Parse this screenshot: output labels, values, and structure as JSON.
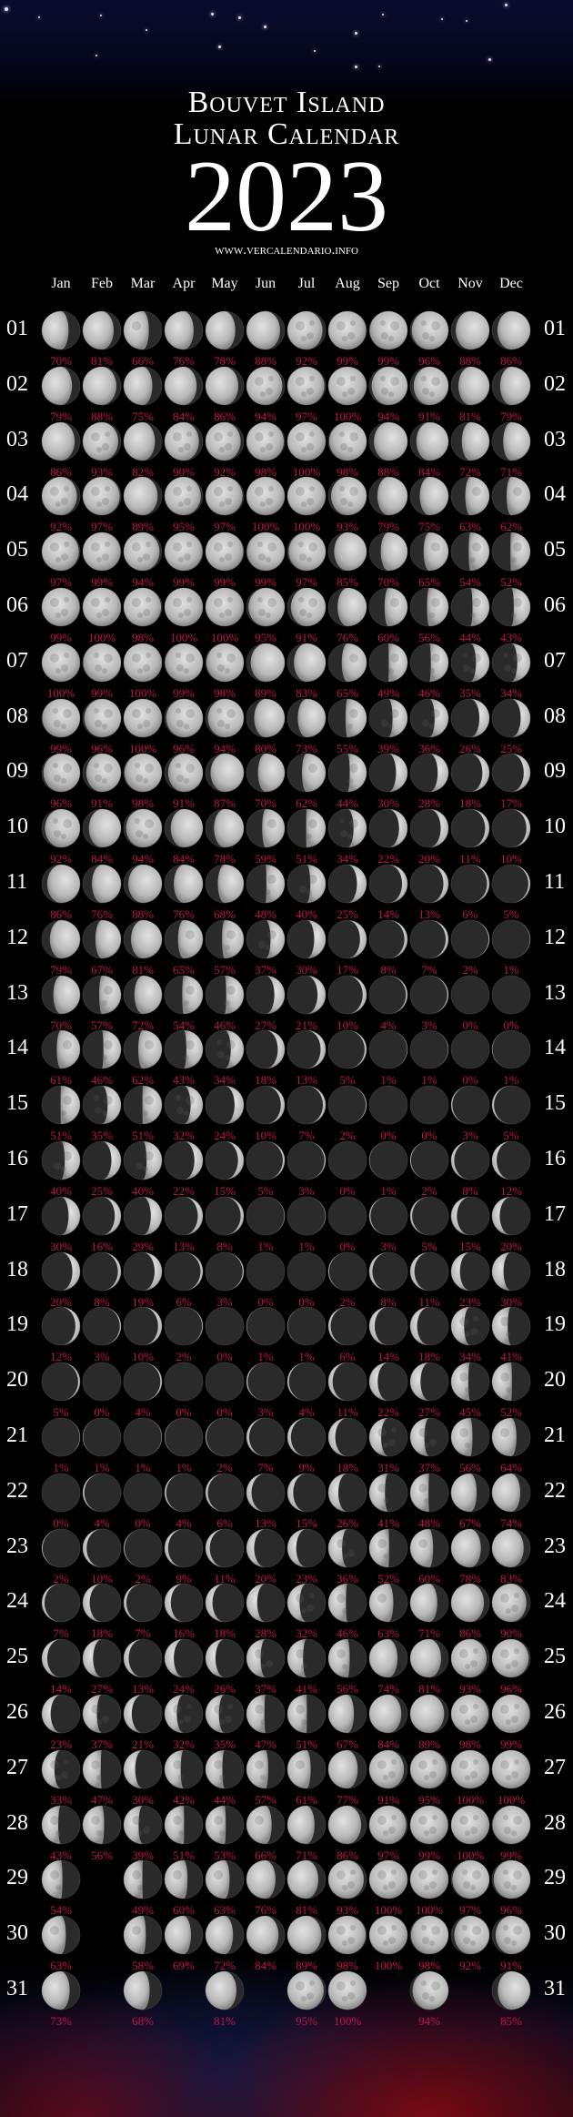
{
  "header": {
    "title_line1": "Bouvet Island",
    "title_line2": "Lunar Calendar",
    "year": "2023",
    "website": "www.vercalendario.info"
  },
  "colors": {
    "background": "#000000",
    "percent_text": "#c0144e",
    "moon_lit": "#c8c8c8",
    "moon_dark": "#2a2a2a",
    "text": "#ffffff"
  },
  "hemisphere_note_icon": "moon-phase-icon",
  "months": [
    "Jan",
    "Feb",
    "Mar",
    "Apr",
    "May",
    "Jun",
    "Jul",
    "Aug",
    "Sep",
    "Oct",
    "Nov",
    "Dec"
  ],
  "days": [
    "01",
    "02",
    "03",
    "04",
    "05",
    "06",
    "07",
    "08",
    "09",
    "10",
    "11",
    "12",
    "13",
    "14",
    "15",
    "16",
    "17",
    "18",
    "19",
    "20",
    "21",
    "22",
    "23",
    "24",
    "25",
    "26",
    "27",
    "28",
    "29",
    "30",
    "31"
  ],
  "illumination": [
    [
      70,
      81,
      66,
      76,
      78,
      88,
      92,
      99,
      99,
      96,
      88,
      86
    ],
    [
      79,
      88,
      75,
      84,
      86,
      94,
      97,
      100,
      94,
      91,
      81,
      79
    ],
    [
      86,
      93,
      82,
      90,
      92,
      98,
      100,
      98,
      88,
      84,
      72,
      71
    ],
    [
      92,
      97,
      89,
      95,
      97,
      100,
      100,
      93,
      79,
      75,
      63,
      62
    ],
    [
      97,
      99,
      94,
      99,
      99,
      99,
      97,
      85,
      70,
      65,
      54,
      52
    ],
    [
      99,
      100,
      98,
      100,
      100,
      95,
      91,
      76,
      60,
      56,
      44,
      43
    ],
    [
      100,
      99,
      100,
      99,
      98,
      89,
      83,
      65,
      49,
      46,
      35,
      34
    ],
    [
      99,
      96,
      100,
      96,
      94,
      80,
      73,
      55,
      39,
      36,
      26,
      25
    ],
    [
      96,
      91,
      98,
      91,
      87,
      70,
      62,
      44,
      30,
      28,
      18,
      17
    ],
    [
      92,
      84,
      94,
      84,
      78,
      59,
      51,
      34,
      22,
      20,
      11,
      10
    ],
    [
      86,
      76,
      88,
      76,
      68,
      48,
      40,
      25,
      14,
      13,
      6,
      5
    ],
    [
      79,
      67,
      81,
      65,
      57,
      37,
      30,
      17,
      8,
      7,
      2,
      1
    ],
    [
      70,
      57,
      72,
      54,
      46,
      27,
      21,
      10,
      4,
      3,
      0,
      0
    ],
    [
      61,
      46,
      62,
      43,
      34,
      18,
      13,
      5,
      1,
      1,
      0,
      1
    ],
    [
      51,
      35,
      51,
      32,
      24,
      10,
      7,
      2,
      0,
      0,
      3,
      5
    ],
    [
      40,
      25,
      40,
      22,
      15,
      5,
      3,
      0,
      1,
      2,
      8,
      12
    ],
    [
      30,
      16,
      29,
      13,
      8,
      1,
      1,
      0,
      3,
      5,
      15,
      20
    ],
    [
      20,
      8,
      19,
      6,
      3,
      0,
      0,
      2,
      8,
      11,
      23,
      30
    ],
    [
      12,
      3,
      10,
      2,
      0,
      1,
      1,
      6,
      14,
      18,
      34,
      41
    ],
    [
      5,
      0,
      4,
      0,
      0,
      3,
      4,
      11,
      22,
      27,
      45,
      52
    ],
    [
      1,
      1,
      1,
      1,
      2,
      7,
      9,
      18,
      31,
      37,
      56,
      64
    ],
    [
      0,
      4,
      0,
      4,
      6,
      13,
      15,
      26,
      41,
      48,
      67,
      74
    ],
    [
      2,
      10,
      2,
      9,
      11,
      20,
      23,
      36,
      52,
      60,
      78,
      83
    ],
    [
      7,
      18,
      7,
      16,
      18,
      28,
      32,
      46,
      63,
      71,
      86,
      90
    ],
    [
      14,
      27,
      13,
      24,
      26,
      37,
      41,
      56,
      74,
      81,
      93,
      96
    ],
    [
      23,
      37,
      21,
      32,
      35,
      47,
      51,
      67,
      84,
      89,
      98,
      99
    ],
    [
      33,
      47,
      30,
      42,
      44,
      57,
      61,
      77,
      91,
      95,
      100,
      100
    ],
    [
      43,
      56,
      39,
      51,
      53,
      66,
      71,
      86,
      97,
      99,
      100,
      99
    ],
    [
      54,
      null,
      49,
      60,
      63,
      76,
      81,
      93,
      100,
      100,
      97,
      96
    ],
    [
      63,
      null,
      58,
      69,
      72,
      84,
      89,
      98,
      100,
      98,
      92,
      91
    ],
    [
      73,
      null,
      68,
      null,
      81,
      null,
      95,
      100,
      null,
      94,
      null,
      85
    ]
  ]
}
